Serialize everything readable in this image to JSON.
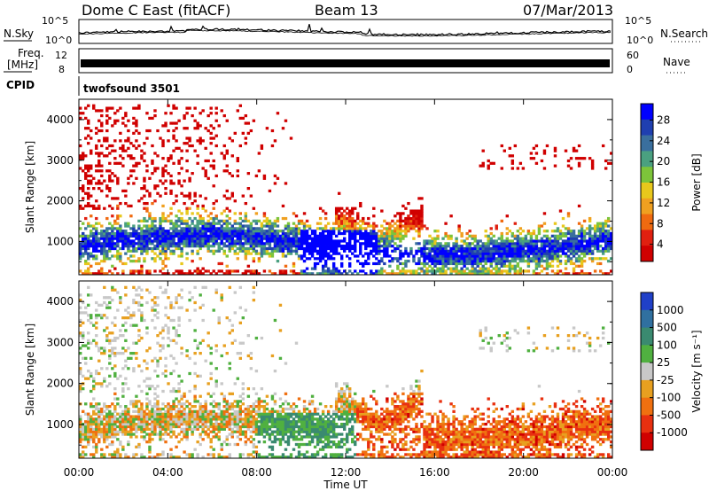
{
  "header": {
    "site": "Dome C East (fitACF)",
    "beam": "Beam 13",
    "date": "07/Mar/2013"
  },
  "status_panels": {
    "nsky_label": "N.Sky",
    "nsky_ticks": [
      "10^5",
      "10^0"
    ],
    "nsearch_label": "N.Search",
    "freq_label_line1": "Freq.",
    "freq_label_line2": "[MHz]",
    "freq_ticks": [
      "12",
      "8"
    ],
    "nave_label": "Nave",
    "nave_ticks": [
      "60",
      "0"
    ],
    "cpid_label": "CPID",
    "cpid_value": "twofsound 3501"
  },
  "chart_data": [
    {
      "type": "heatmap",
      "name": "power",
      "ylabel": "Slant Range [km]",
      "ylim": [
        180,
        4500
      ],
      "yticks": [
        "1000",
        "2000",
        "3000",
        "4000"
      ],
      "xlabel": "Time UT",
      "xticks": [
        "00:00",
        "04:00",
        "08:00",
        "12:00",
        "16:00",
        "20:00",
        "00:00"
      ],
      "colorbar": {
        "label": "Power [dB]",
        "ticks": [
          "4",
          "8",
          "12",
          "16",
          "20",
          "24",
          "28"
        ],
        "colors": [
          "#0000ff",
          "#1f3fb0",
          "#3a6f9e",
          "#4aa080",
          "#7dc43a",
          "#e8c81c",
          "#f0a020",
          "#f06a10",
          "#e02010",
          "#d00000"
        ]
      }
    },
    {
      "type": "heatmap",
      "name": "velocity",
      "ylabel": "Slant Range [km]",
      "ylim": [
        180,
        4500
      ],
      "yticks": [
        "1000",
        "2000",
        "3000",
        "4000"
      ],
      "xlabel": "Time UT",
      "xticks": [
        "00:00",
        "04:00",
        "08:00",
        "12:00",
        "16:00",
        "20:00",
        "00:00"
      ],
      "colorbar": {
        "label": "Velocity [m s⁻¹]",
        "ticks": [
          "1000",
          "500",
          "100",
          "25",
          "-25",
          "-100",
          "-500",
          "-1000"
        ],
        "colors": [
          "#2040c8",
          "#3070a0",
          "#3a8a70",
          "#50b040",
          "#c8c8c8",
          "#e8a020",
          "#f07010",
          "#e83010",
          "#d00000"
        ]
      }
    }
  ],
  "footer": {
    "xlabel": "Time UT"
  }
}
